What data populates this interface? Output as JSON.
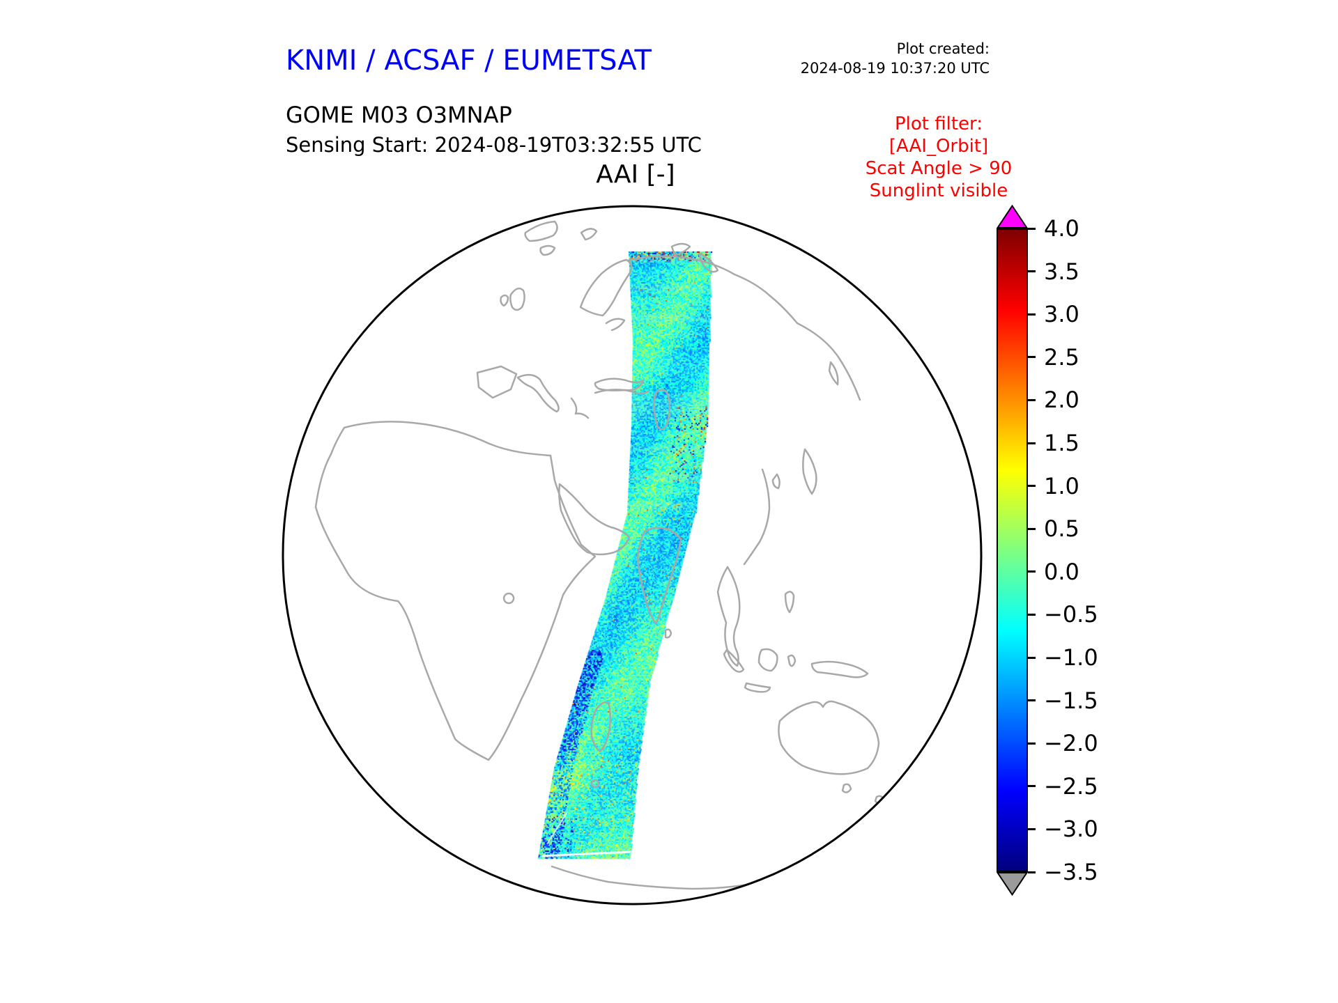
{
  "header": {
    "title": "KNMI / ACSAF / EUMETSAT",
    "title_color": "#0000ff",
    "created_label": "Plot created:",
    "created_value": "2024-08-19 10:37:20 UTC"
  },
  "product": {
    "line1": "GOME M03 O3MNAP",
    "line2": "Sensing Start: 2024-08-19T03:32:55 UTC"
  },
  "map": {
    "title": "AAI [-]"
  },
  "filter": {
    "color": "#ff0000",
    "lines": [
      "Plot filter:",
      "[AAI_Orbit]",
      "Scat Angle > 90",
      "Sunglint visible"
    ]
  },
  "chart_data": {
    "type": "heatmap",
    "title": "AAI [-]",
    "projection": "orthographic globe centered on Africa/Europe/Asia",
    "value_range": [
      -3.5,
      4.0
    ],
    "coastline_color": "#a8a8a8",
    "colorbar": {
      "ticks": [
        "4.0",
        "3.5",
        "3.0",
        "2.5",
        "2.0",
        "1.5",
        "1.0",
        "0.5",
        "0.0",
        "−0.5",
        "−1.0",
        "−1.5",
        "−2.0",
        "−2.5",
        "−3.0",
        "−3.5"
      ],
      "tick_values": [
        4.0,
        3.5,
        3.0,
        2.5,
        2.0,
        1.5,
        1.0,
        0.5,
        0.0,
        -0.5,
        -1.0,
        -1.5,
        -2.0,
        -2.5,
        -3.0,
        -3.5
      ],
      "over_color": "#ff00ff",
      "under_color": "#9b9b9b",
      "colormap_stops": [
        {
          "pos": 0.0,
          "color": "#00007f"
        },
        {
          "pos": 0.125,
          "color": "#0000ff"
        },
        {
          "pos": 0.375,
          "color": "#00ffff"
        },
        {
          "pos": 0.625,
          "color": "#ffff00"
        },
        {
          "pos": 0.875,
          "color": "#ff0000"
        },
        {
          "pos": 1.0,
          "color": "#7f0000"
        }
      ]
    },
    "swath": {
      "description": "North-to-south satellite orbit swath of Absorbing Aerosol Index; values mostly between -2 and +1 (cyan/green speckle), sparse orange-red spots mid-swath, dark blue streaks along the lower-left edge, multicolored first scanline at the northern end and a thin white gap line near the southern end",
      "centerline": [
        [
          559,
          69
        ],
        [
          561,
          197
        ],
        [
          558,
          320
        ],
        [
          547,
          443
        ],
        [
          515,
          565
        ],
        [
          479,
          688
        ],
        [
          453,
          810
        ],
        [
          436,
          940
        ]
      ],
      "halfwidths": [
        59,
        55,
        54,
        49,
        48,
        51,
        60,
        66
      ],
      "typical_value": -0.55,
      "noise_amplitude": 0.85,
      "seed": 987654321
    }
  }
}
